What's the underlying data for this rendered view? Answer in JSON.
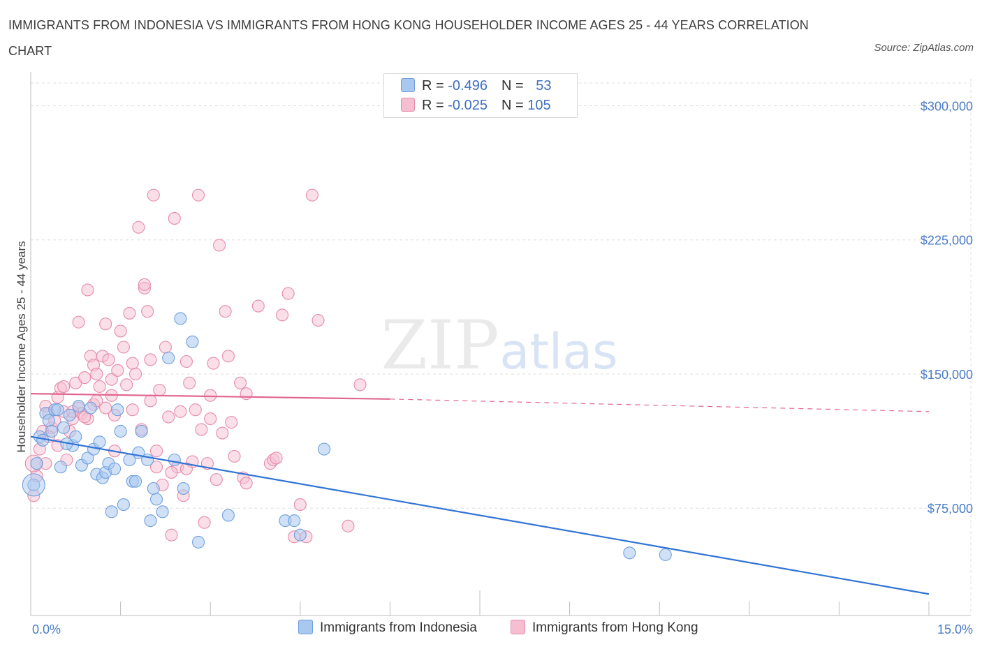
{
  "title": "IMMIGRANTS FROM INDONESIA VS IMMIGRANTS FROM HONG KONG HOUSEHOLDER INCOME AGES 25 - 44 YEARS CORRELATION CHART",
  "source": "Source: ZipAtlas.com",
  "watermark": {
    "zip": "ZIP",
    "atlas": "atlas"
  },
  "legend": {
    "rows": [
      {
        "r_label": "R = ",
        "r_value": "-0.496",
        "n_label": "N = ",
        "n_value": "53"
      },
      {
        "r_label": "R = ",
        "r_value": "-0.025",
        "n_label": "N = ",
        "n_value": "105"
      }
    ]
  },
  "bottom_legend": [
    "Immigrants from Indonesia",
    "Immigrants from Hong Kong"
  ],
  "colors": {
    "indonesia_fill": "#a9c8f0",
    "indonesia_stroke": "#6f9fdc",
    "indonesia_line": "#3174d4",
    "hongkong_fill": "#f6bfd1",
    "hongkong_stroke": "#e68ba9",
    "hongkong_line": "#e0668f",
    "grid": "#dedede",
    "axis_text": "#4a7cc7"
  },
  "chart_data": {
    "type": "scatter",
    "title": "IMMIGRANTS FROM INDONESIA VS IMMIGRANTS FROM HONG KONG HOUSEHOLDER INCOME AGES 25 - 44 YEARS CORRELATION CHART",
    "xlabel": "",
    "ylabel": "Householder Income Ages 25 - 44 years",
    "xlim": [
      0,
      15
    ],
    "ylim": [
      15000,
      315000
    ],
    "x_tick_labels": [
      "0.0%",
      "15.0%"
    ],
    "y_ticks": [
      75000,
      150000,
      225000,
      300000
    ],
    "y_tick_labels": [
      "$75,000",
      "$150,000",
      "$225,000",
      "$300,000"
    ],
    "grid": true,
    "series": [
      {
        "name": "Immigrants from Indonesia",
        "trend": {
          "x": [
            0.0,
            15.0
          ],
          "y": [
            115000,
            27000
          ]
        },
        "points": [
          [
            0.05,
            88000
          ],
          [
            0.1,
            100000
          ],
          [
            0.15,
            115000
          ],
          [
            0.2,
            113000
          ],
          [
            0.25,
            128000
          ],
          [
            0.3,
            124000
          ],
          [
            0.35,
            118000
          ],
          [
            0.4,
            130000
          ],
          [
            0.45,
            130000
          ],
          [
            0.5,
            98000
          ],
          [
            0.55,
            120000
          ],
          [
            0.7,
            110000
          ],
          [
            0.75,
            115000
          ],
          [
            0.8,
            132000
          ],
          [
            0.85,
            99000
          ],
          [
            0.95,
            103000
          ],
          [
            1.0,
            131000
          ],
          [
            1.05,
            108000
          ],
          [
            1.1,
            94000
          ],
          [
            1.15,
            112000
          ],
          [
            1.2,
            92000
          ],
          [
            1.25,
            95000
          ],
          [
            1.3,
            100000
          ],
          [
            1.35,
            73000
          ],
          [
            1.45,
            130000
          ],
          [
            1.5,
            118000
          ],
          [
            1.55,
            77000
          ],
          [
            1.65,
            102000
          ],
          [
            1.7,
            90000
          ],
          [
            1.75,
            90000
          ],
          [
            1.8,
            106000
          ],
          [
            1.85,
            118000
          ],
          [
            1.95,
            102000
          ],
          [
            2.0,
            68000
          ],
          [
            2.05,
            86000
          ],
          [
            2.1,
            80000
          ],
          [
            2.2,
            73000
          ],
          [
            2.3,
            159000
          ],
          [
            2.4,
            102000
          ],
          [
            2.5,
            181000
          ],
          [
            2.55,
            86000
          ],
          [
            2.7,
            168000
          ],
          [
            2.8,
            56000
          ],
          [
            3.3,
            71000
          ],
          [
            4.25,
            68000
          ],
          [
            4.4,
            68000
          ],
          [
            4.5,
            60000
          ],
          [
            4.9,
            108000
          ],
          [
            10.0,
            50000
          ],
          [
            10.6,
            49000
          ],
          [
            0.6,
            111000
          ],
          [
            0.65,
            127000
          ],
          [
            1.4,
            97000
          ]
        ]
      },
      {
        "name": "Immigrants from Hong Kong",
        "trend": {
          "x": [
            0.0,
            6.0
          ],
          "y": [
            139000,
            136000
          ],
          "dashed_to": {
            "x": 15.0,
            "y": 129000
          }
        },
        "points": [
          [
            0.05,
            82000
          ],
          [
            0.1,
            93000
          ],
          [
            0.15,
            108000
          ],
          [
            0.2,
            118000
          ],
          [
            0.25,
            132000
          ],
          [
            0.3,
            128000
          ],
          [
            0.35,
            120000
          ],
          [
            0.4,
            124000
          ],
          [
            0.45,
            137000
          ],
          [
            0.5,
            142000
          ],
          [
            0.55,
            129000
          ],
          [
            0.6,
            102000
          ],
          [
            0.65,
            118000
          ],
          [
            0.7,
            125000
          ],
          [
            0.75,
            145000
          ],
          [
            0.8,
            131000
          ],
          [
            0.85,
            128000
          ],
          [
            0.9,
            148000
          ],
          [
            0.95,
            125000
          ],
          [
            1.0,
            160000
          ],
          [
            1.05,
            133000
          ],
          [
            1.1,
            135000
          ],
          [
            1.15,
            143000
          ],
          [
            1.2,
            160000
          ],
          [
            1.25,
            178000
          ],
          [
            1.3,
            158000
          ],
          [
            1.35,
            147000
          ],
          [
            1.4,
            127000
          ],
          [
            1.45,
            152000
          ],
          [
            1.5,
            174000
          ],
          [
            1.55,
            165000
          ],
          [
            1.6,
            144000
          ],
          [
            1.65,
            184000
          ],
          [
            1.7,
            156000
          ],
          [
            1.75,
            150000
          ],
          [
            1.8,
            232000
          ],
          [
            1.85,
            119000
          ],
          [
            1.9,
            198000
          ],
          [
            1.95,
            185000
          ],
          [
            2.0,
            158000
          ],
          [
            2.05,
            250000
          ],
          [
            2.1,
            107000
          ],
          [
            2.15,
            141000
          ],
          [
            2.2,
            88000
          ],
          [
            2.25,
            165000
          ],
          [
            2.3,
            126000
          ],
          [
            2.35,
            60000
          ],
          [
            2.4,
            237000
          ],
          [
            2.45,
            98000
          ],
          [
            2.5,
            129000
          ],
          [
            2.55,
            82000
          ],
          [
            2.6,
            157000
          ],
          [
            2.65,
            145000
          ],
          [
            2.7,
            101000
          ],
          [
            2.75,
            130000
          ],
          [
            2.8,
            250000
          ],
          [
            2.85,
            119000
          ],
          [
            2.9,
            67000
          ],
          [
            2.95,
            100000
          ],
          [
            3.0,
            125000
          ],
          [
            3.05,
            156000
          ],
          [
            3.1,
            91000
          ],
          [
            3.15,
            222000
          ],
          [
            3.2,
            117000
          ],
          [
            3.25,
            185000
          ],
          [
            3.3,
            160000
          ],
          [
            3.35,
            123000
          ],
          [
            3.4,
            104000
          ],
          [
            3.5,
            145000
          ],
          [
            3.55,
            92000
          ],
          [
            3.6,
            139000
          ],
          [
            3.8,
            188000
          ],
          [
            4.0,
            100000
          ],
          [
            4.05,
            102000
          ],
          [
            4.1,
            103000
          ],
          [
            4.2,
            183000
          ],
          [
            4.3,
            195000
          ],
          [
            4.4,
            59000
          ],
          [
            4.5,
            77000
          ],
          [
            4.6,
            59000
          ],
          [
            4.7,
            250000
          ],
          [
            4.8,
            180000
          ],
          [
            5.3,
            65000
          ],
          [
            5.5,
            144000
          ],
          [
            0.95,
            197000
          ],
          [
            0.8,
            179000
          ],
          [
            1.4,
            107000
          ],
          [
            0.45,
            110000
          ],
          [
            0.3,
            115000
          ],
          [
            0.25,
            100000
          ],
          [
            1.25,
            131000
          ],
          [
            0.7,
            129000
          ],
          [
            1.05,
            155000
          ],
          [
            1.7,
            130000
          ],
          [
            2.0,
            135000
          ],
          [
            2.35,
            95000
          ],
          [
            2.6,
            97000
          ],
          [
            1.1,
            150000
          ],
          [
            1.9,
            200000
          ],
          [
            3.0,
            138000
          ],
          [
            3.6,
            89000
          ],
          [
            0.55,
            143000
          ],
          [
            0.9,
            126000
          ],
          [
            2.1,
            98000
          ],
          [
            1.35,
            138000
          ]
        ]
      }
    ]
  }
}
